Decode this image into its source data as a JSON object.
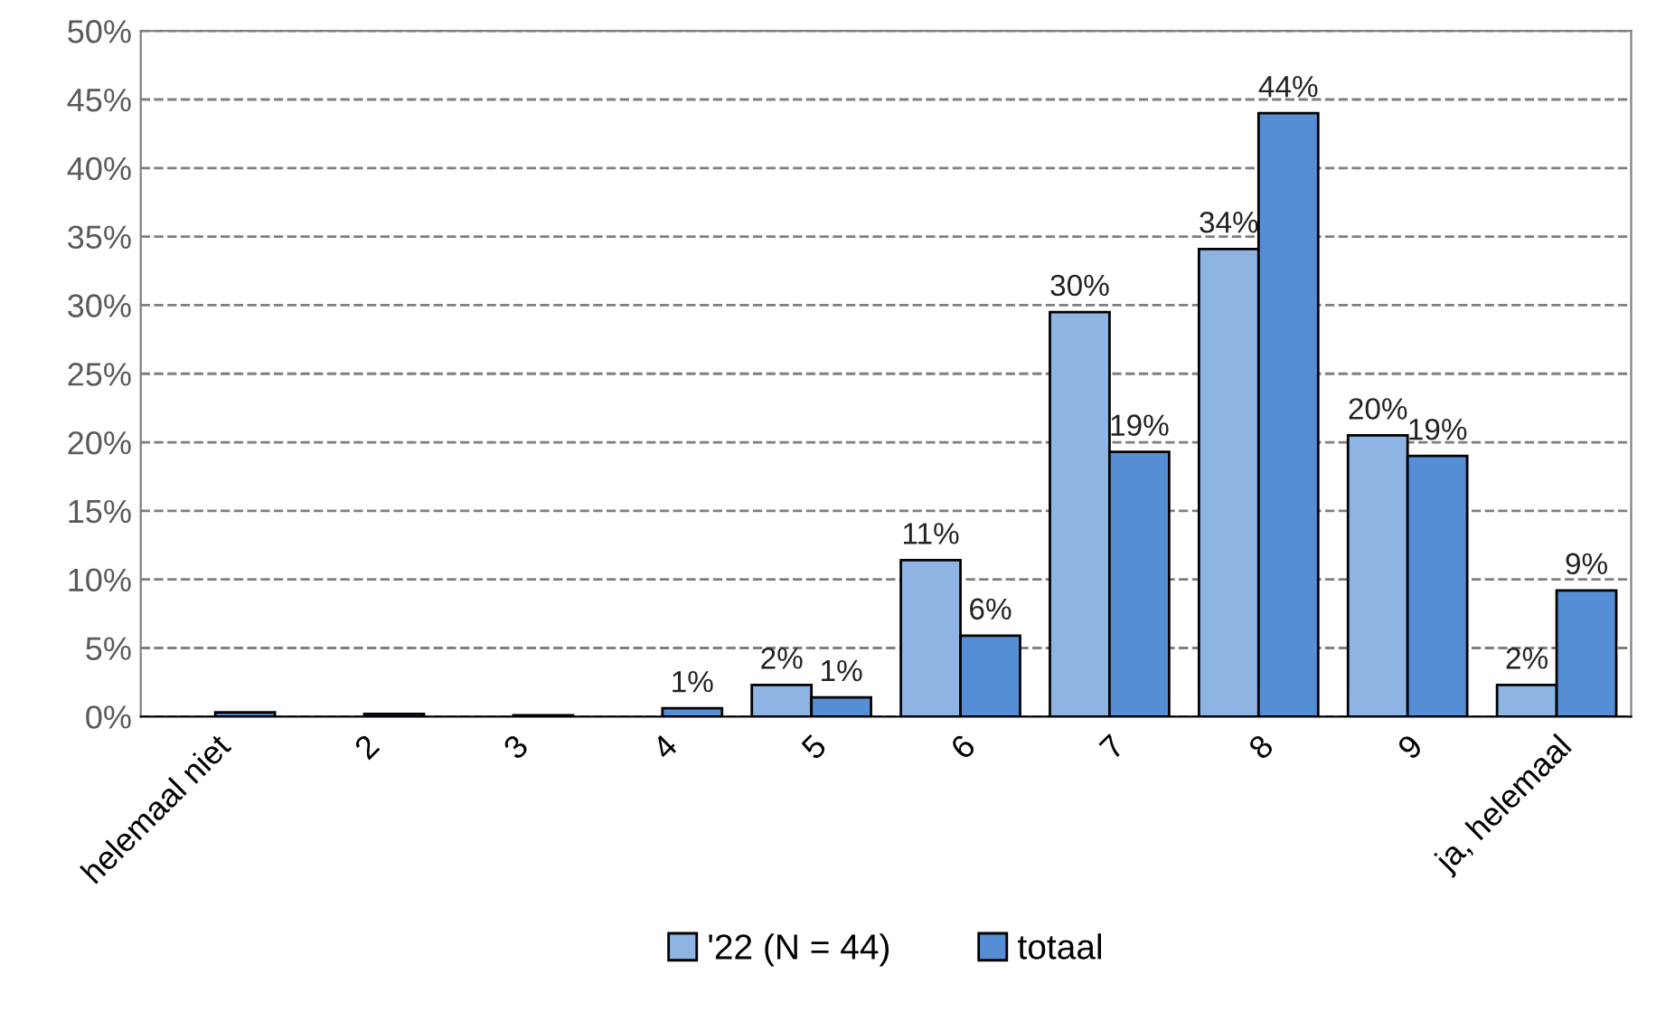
{
  "chart_data": {
    "type": "bar",
    "categories": [
      "helemaal niet",
      "2",
      "3",
      "4",
      "5",
      "6",
      "7",
      "8",
      "9",
      "ja, helemaal"
    ],
    "series": [
      {
        "name": "'22 (N = 44)",
        "color": "#8db4e2",
        "values": [
          null,
          null,
          null,
          null,
          2.3,
          11.4,
          29.5,
          34.1,
          20.5,
          2.3
        ],
        "value_labels": [
          null,
          null,
          null,
          null,
          "2%",
          "11%",
          "30%",
          "34%",
          "20%",
          "2%"
        ]
      },
      {
        "name": "totaal",
        "color": "#558ed5",
        "values": [
          0.3,
          0.2,
          0.1,
          0.6,
          1.4,
          5.9,
          19.3,
          44.0,
          19.0,
          9.2
        ],
        "value_labels": [
          null,
          null,
          null,
          "1%",
          "1%",
          "6%",
          "19%",
          "44%",
          "19%",
          "9%"
        ]
      }
    ],
    "ylim": [
      0,
      50
    ],
    "yticks": [
      {
        "value": 0,
        "label": "0%"
      },
      {
        "value": 5,
        "label": "5%"
      },
      {
        "value": 10,
        "label": "10%"
      },
      {
        "value": 15,
        "label": "15%"
      },
      {
        "value": 20,
        "label": "20%"
      },
      {
        "value": 25,
        "label": "25%"
      },
      {
        "value": 30,
        "label": "30%"
      },
      {
        "value": 35,
        "label": "35%"
      },
      {
        "value": 40,
        "label": "40%"
      },
      {
        "value": 45,
        "label": "45%"
      },
      {
        "value": 50,
        "label": "50%"
      }
    ],
    "grid": "y",
    "legend": "bottom"
  }
}
